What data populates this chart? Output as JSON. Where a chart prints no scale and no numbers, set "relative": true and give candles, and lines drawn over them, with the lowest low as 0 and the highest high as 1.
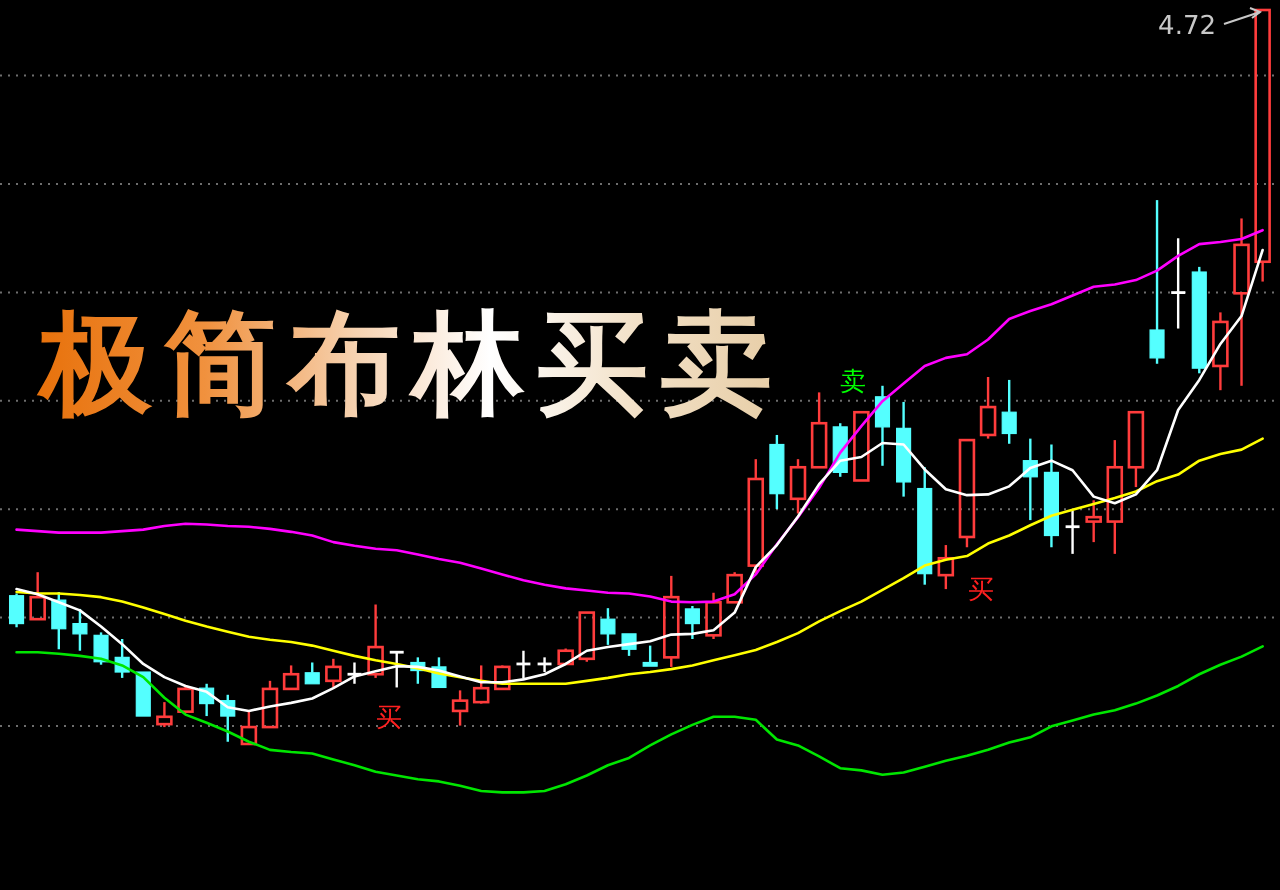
{
  "chart_data": {
    "type": "candlestick",
    "title": "极简布林买卖",
    "relative": true,
    "grid": "y",
    "categories": [
      null,
      null,
      null,
      null,
      null,
      null,
      null,
      null,
      null,
      null,
      null,
      null,
      null,
      null,
      null,
      null,
      null,
      null,
      null,
      null,
      null,
      null,
      null,
      null,
      null,
      null,
      null,
      null,
      null,
      null,
      null,
      null,
      null,
      null,
      null,
      null,
      null,
      null,
      null,
      null,
      null,
      null,
      null,
      null,
      null,
      null,
      null,
      null,
      null,
      null,
      null,
      null,
      null,
      null,
      null,
      null,
      null,
      null,
      null,
      null
    ],
    "ohlc": [
      [
        0.202,
        0.205,
        0.159,
        0.164
      ],
      [
        0.17,
        0.234,
        0.17,
        0.2
      ],
      [
        0.196,
        0.207,
        0.129,
        0.157
      ],
      [
        0.164,
        0.184,
        0.127,
        0.15
      ],
      [
        0.148,
        0.152,
        0.108,
        0.112
      ],
      [
        0.118,
        0.143,
        0.09,
        0.098
      ],
      [
        0.098,
        0.098,
        0.038,
        0.038
      ],
      [
        0.027,
        0.057,
        0.023,
        0.037
      ],
      [
        0.044,
        0.078,
        0.044,
        0.075
      ],
      [
        0.076,
        0.082,
        0.038,
        0.055
      ],
      [
        0.059,
        0.067,
        0.003,
        0.038
      ],
      [
        0,
        0.046,
        0,
        0.023
      ],
      [
        0.023,
        0.086,
        0.023,
        0.075
      ],
      [
        0.075,
        0.107,
        0.075,
        0.095
      ],
      [
        0.097,
        0.111,
        0.082,
        0.082
      ],
      [
        0.086,
        0.116,
        0.077,
        0.105
      ],
      [
        0.095,
        0.111,
        0.082,
        0.095
      ],
      [
        0.095,
        0.19,
        0.09,
        0.132
      ],
      [
        0.125,
        0.125,
        0.077,
        0.125
      ],
      [
        0.111,
        0.118,
        0.082,
        0.1
      ],
      [
        0.105,
        0.118,
        0.077,
        0.077
      ],
      [
        0.045,
        0.073,
        0.025,
        0.059
      ],
      [
        0.057,
        0.107,
        0.055,
        0.076
      ],
      [
        0.075,
        0.107,
        0.075,
        0.105
      ],
      [
        0.109,
        0.127,
        0.089,
        0.109
      ],
      [
        0.109,
        0.118,
        0.098,
        0.109
      ],
      [
        0.109,
        0.13,
        0.109,
        0.127
      ],
      [
        0.116,
        0.179,
        0.112,
        0.179
      ],
      [
        0.17,
        0.185,
        0.135,
        0.15
      ],
      [
        0.15,
        0.15,
        0.12,
        0.129
      ],
      [
        0.111,
        0.134,
        0.106,
        0.106
      ],
      [
        0.118,
        0.229,
        0.105,
        0.2
      ],
      [
        0.184,
        0.188,
        0.143,
        0.164
      ],
      [
        0.148,
        0.206,
        0.143,
        0.193
      ],
      [
        0.193,
        0.234,
        0.193,
        0.23
      ],
      [
        0.243,
        0.388,
        0.232,
        0.361
      ],
      [
        0.408,
        0.421,
        0.32,
        0.341
      ],
      [
        0.334,
        0.388,
        0.314,
        0.377
      ],
      [
        0.377,
        0.479,
        0.377,
        0.437
      ],
      [
        0.432,
        0.437,
        0.364,
        0.37
      ],
      [
        0.359,
        0.452,
        0.359,
        0.452
      ],
      [
        0.473,
        0.488,
        0.379,
        0.432
      ],
      [
        0.43,
        0.466,
        0.337,
        0.357
      ],
      [
        0.348,
        0.377,
        0.217,
        0.232
      ],
      [
        0.23,
        0.271,
        0.211,
        0.253
      ],
      [
        0.282,
        0.414,
        0.268,
        0.414
      ],
      [
        0.421,
        0.5,
        0.416,
        0.459
      ],
      [
        0.452,
        0.496,
        0.409,
        0.423
      ],
      [
        0.386,
        0.416,
        0.305,
        0.364
      ],
      [
        0.37,
        0.408,
        0.268,
        0.284
      ],
      [
        0.296,
        0.318,
        0.259,
        0.296
      ],
      [
        0.303,
        0.332,
        0.275,
        0.309
      ],
      [
        0.303,
        0.414,
        0.259,
        0.377
      ],
      [
        0.377,
        0.452,
        0.35,
        0.452
      ],
      [
        0.564,
        0.741,
        0.518,
        0.526
      ],
      [
        0.615,
        0.689,
        0.566,
        0.615
      ],
      [
        0.643,
        0.65,
        0.505,
        0.512
      ],
      [
        0.515,
        0.588,
        0.482,
        0.575
      ],
      [
        0.614,
        0.716,
        0.488,
        0.68
      ],
      [
        0.657,
        1,
        0.63,
        1
      ]
    ],
    "colors": [
      "#54ffff",
      "#ff3c3c",
      "#54ffff",
      "#54ffff",
      "#54ffff",
      "#54ffff",
      "#54ffff",
      "#ff3c3c",
      "#ff3c3c",
      "#54ffff",
      "#54ffff",
      "#ff3c3c",
      "#ff3c3c",
      "#ff3c3c",
      "#54ffff",
      "#ff3c3c",
      "#ffffff",
      "#ff3c3c",
      "#ffffff",
      "#54ffff",
      "#54ffff",
      "#ff3c3c",
      "#ff3c3c",
      "#ff3c3c",
      "#ffffff",
      "#ffffff",
      "#ff3c3c",
      "#ff3c3c",
      "#54ffff",
      "#54ffff",
      "#54ffff",
      "#ff3c3c",
      "#54ffff",
      "#ff3c3c",
      "#ff3c3c",
      "#ff3c3c",
      "#54ffff",
      "#ff3c3c",
      "#ff3c3c",
      "#54ffff",
      "#ff3c3c",
      "#54ffff",
      "#54ffff",
      "#54ffff",
      "#ff3c3c",
      "#ff3c3c",
      "#ff3c3c",
      "#54ffff",
      "#54ffff",
      "#54ffff",
      "#ffffff",
      "#ff3c3c",
      "#ff3c3c",
      "#ff3c3c",
      "#54ffff",
      "#ffffff",
      "#54ffff",
      "#ff3c3c",
      "#ff3c3c",
      "#ff3c3c"
    ],
    "series": [
      {
        "type": "line",
        "color": "#ff00ff",
        "values": [
          0.292,
          0.29,
          0.288,
          0.288,
          0.288,
          0.29,
          0.292,
          0.297,
          0.3,
          0.299,
          0.297,
          0.296,
          0.293,
          0.289,
          0.284,
          0.275,
          0.27,
          0.266,
          0.264,
          0.258,
          0.252,
          0.247,
          0.239,
          0.231,
          0.223,
          0.217,
          0.212,
          0.209,
          0.206,
          0.205,
          0.201,
          0.194,
          0.193,
          0.194,
          0.204,
          0.231,
          0.272,
          0.309,
          0.349,
          0.397,
          0.433,
          0.467,
          0.491,
          0.515,
          0.526,
          0.531,
          0.551,
          0.579,
          0.59,
          0.599,
          0.611,
          0.623,
          0.626,
          0.632,
          0.645,
          0.665,
          0.681,
          0.684,
          0.688,
          0.7
        ]
      },
      {
        "type": "line",
        "color": "#ffff00",
        "values": [
          0.207,
          0.205,
          0.205,
          0.203,
          0.2,
          0.194,
          0.186,
          0.177,
          0.168,
          0.16,
          0.153,
          0.146,
          0.142,
          0.139,
          0.134,
          0.127,
          0.12,
          0.114,
          0.109,
          0.103,
          0.096,
          0.091,
          0.086,
          0.082,
          0.082,
          0.082,
          0.082,
          0.086,
          0.09,
          0.095,
          0.098,
          0.102,
          0.107,
          0.114,
          0.121,
          0.128,
          0.139,
          0.151,
          0.167,
          0.181,
          0.194,
          0.21,
          0.226,
          0.243,
          0.251,
          0.256,
          0.273,
          0.284,
          0.298,
          0.311,
          0.319,
          0.327,
          0.335,
          0.344,
          0.358,
          0.367,
          0.386,
          0.395,
          0.401,
          0.416
        ]
      },
      {
        "type": "line",
        "color": "#00e600",
        "values": [
          0.125,
          0.125,
          0.123,
          0.12,
          0.116,
          0.107,
          0.091,
          0.063,
          0.04,
          0.029,
          0.017,
          0.003,
          -0.008,
          -0.011,
          -0.013,
          -0.021,
          -0.029,
          -0.038,
          -0.043,
          -0.048,
          -0.051,
          -0.057,
          -0.064,
          -0.066,
          -0.066,
          -0.064,
          -0.055,
          -0.043,
          -0.029,
          -0.019,
          -0.002,
          0.013,
          0.026,
          0.037,
          0.037,
          0.033,
          0.006,
          -0.002,
          -0.017,
          -0.033,
          -0.036,
          -0.042,
          -0.039,
          -0.031,
          -0.023,
          -0.016,
          -0.008,
          0.002,
          0.009,
          0.024,
          0.032,
          0.04,
          0.046,
          0.055,
          0.066,
          0.079,
          0.095,
          0.108,
          0.119,
          0.133
        ]
      },
      {
        "type": "line",
        "color": "#ffffff",
        "values": [
          0.211,
          0.204,
          0.193,
          0.182,
          0.16,
          0.136,
          0.109,
          0.091,
          0.079,
          0.071,
          0.05,
          0.045,
          0.051,
          0.056,
          0.062,
          0.076,
          0.092,
          0.099,
          0.106,
          0.105,
          0.1,
          0.092,
          0.084,
          0.084,
          0.088,
          0.095,
          0.109,
          0.127,
          0.132,
          0.136,
          0.14,
          0.149,
          0.15,
          0.155,
          0.179,
          0.241,
          0.271,
          0.31,
          0.354,
          0.386,
          0.391,
          0.41,
          0.408,
          0.374,
          0.347,
          0.339,
          0.34,
          0.351,
          0.376,
          0.386,
          0.373,
          0.337,
          0.328,
          0.34,
          0.373,
          0.455,
          0.496,
          0.545,
          0.583,
          0.673
        ]
      }
    ],
    "annotations": [
      "4.72",
      "买",
      "买",
      "卖"
    ]
  }
}
